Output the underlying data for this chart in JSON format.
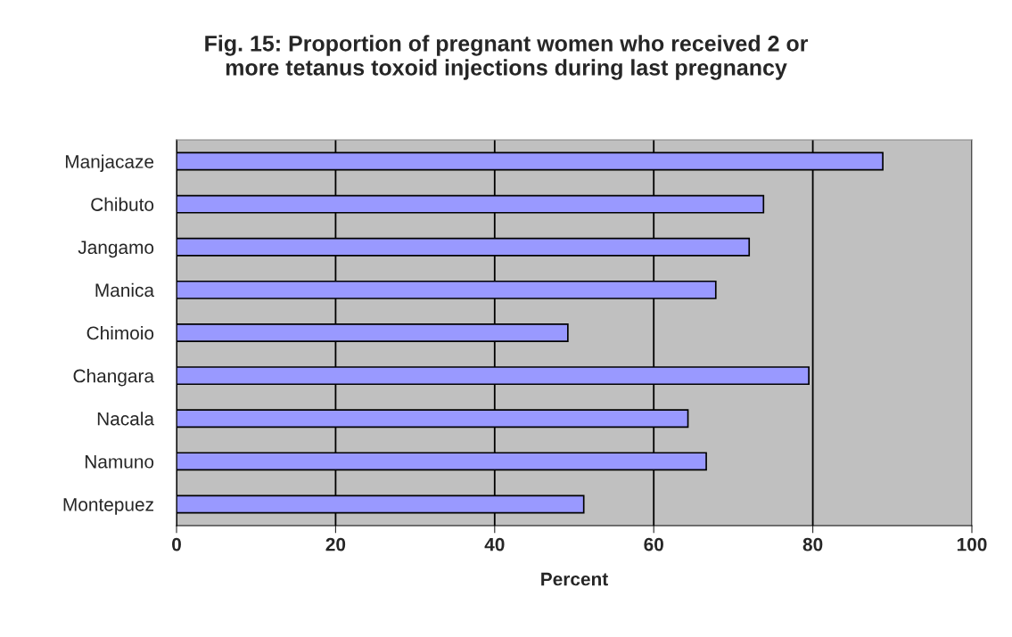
{
  "chart_data": {
    "type": "bar",
    "orientation": "horizontal",
    "title": "Fig. 15: Proportion of pregnant women who received 2 or\nmore tetanus toxoid injections during last pregnancy",
    "xlabel": "Percent",
    "categories": [
      "Manjacaze",
      "Chibuto",
      "Jangamo",
      "Manica",
      "Chimoio",
      "Changara",
      "Nacala",
      "Namuno",
      "Montepuez"
    ],
    "values": [
      88.8,
      73.8,
      72,
      67.8,
      49.2,
      79.5,
      64.3,
      66.6,
      51.2
    ],
    "color": "#9999ff",
    "xlim": [
      0,
      100
    ],
    "xticks": [
      0,
      20,
      40,
      60,
      80,
      100
    ],
    "grid": "x",
    "legend": false
  }
}
